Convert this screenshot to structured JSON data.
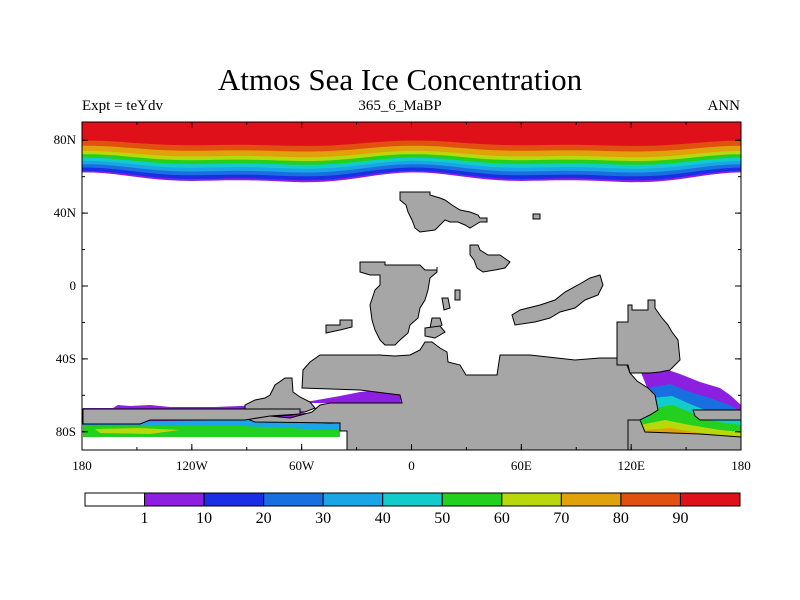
{
  "chart_data": {
    "type": "heatmap",
    "title": "Atmos Sea Ice Concentration",
    "left_label": "Expt = teYdv",
    "center_label": "365_6_MaBP",
    "right_label": "ANN",
    "x_ticks": [
      "180",
      "120W",
      "60W",
      "0",
      "60E",
      "120E",
      "180"
    ],
    "x_range": [
      -180,
      180
    ],
    "y_ticks": [
      "80N",
      "40N",
      "0",
      "40S",
      "80S"
    ],
    "y_range": [
      -90,
      90
    ],
    "colorbar": {
      "colors": [
        "#ffffff",
        "#8c1fe0",
        "#1a2ee6",
        "#1a6fe0",
        "#1aa6e6",
        "#12cccc",
        "#22d01d",
        "#b8d80c",
        "#e0a20a",
        "#e0500e",
        "#e0101a"
      ],
      "labels": [
        "1",
        "10",
        "20",
        "30",
        "40",
        "50",
        "60",
        "70",
        "80",
        "90"
      ]
    },
    "arctic_bands": [
      {
        "level": "90",
        "color": "#e0101a",
        "lat_edge": 78
      },
      {
        "level": "80",
        "color": "#e0500e",
        "lat_edge": 75
      },
      {
        "level": "70",
        "color": "#e0a20a",
        "lat_edge": 72
      },
      {
        "level": "60",
        "color": "#b8d80c",
        "lat_edge": 70
      },
      {
        "level": "50",
        "color": "#22d01d",
        "lat_edge": 68
      },
      {
        "level": "40",
        "color": "#12cccc",
        "lat_edge": 66
      },
      {
        "level": "30",
        "color": "#1aa6e6",
        "lat_edge": 64
      },
      {
        "level": "20",
        "color": "#1a6fe0",
        "lat_edge": 62
      },
      {
        "level": "10",
        "color": "#1a2ee6",
        "lat_edge": 60
      },
      {
        "level": "1",
        "color": "#8c1fe0",
        "lat_edge": 59
      }
    ],
    "land_color": "#a6a6a6"
  }
}
